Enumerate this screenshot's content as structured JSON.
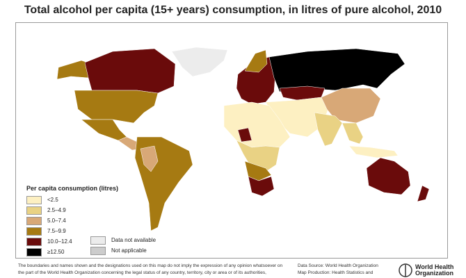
{
  "title": "Total alcohol per capita (15+ years) consumption, in litres of pure alcohol, 2010",
  "legend": {
    "title": "Per capita consumption (litres)",
    "items": [
      {
        "label": "<2.5",
        "color": "#fdf0c2"
      },
      {
        "label": "2.5–4.9",
        "color": "#e9d284"
      },
      {
        "label": "5.0–7.4",
        "color": "#d8a877"
      },
      {
        "label": "7.5–9.9",
        "color": "#a67a12"
      },
      {
        "label": "10.0–12.4",
        "color": "#6a0b0b"
      },
      {
        "label": "≥12.50",
        "color": "#000000"
      }
    ],
    "extra": [
      {
        "label": "Data not available",
        "color": "#ececec"
      },
      {
        "label": "Not applicable",
        "color": "#cccccc"
      }
    ]
  },
  "disclaimer": "The boundaries and names shown and the designations used on this map do not imply the expression of any opinion whatsoever on the part of the World Health Organization concerning the legal status of any country, territory, city or area or of its authorities,",
  "source": [
    "Data Source: World Health Organization",
    "Map Production: Health Statistics and"
  ],
  "org": [
    "World Health",
    "Organization"
  ]
}
